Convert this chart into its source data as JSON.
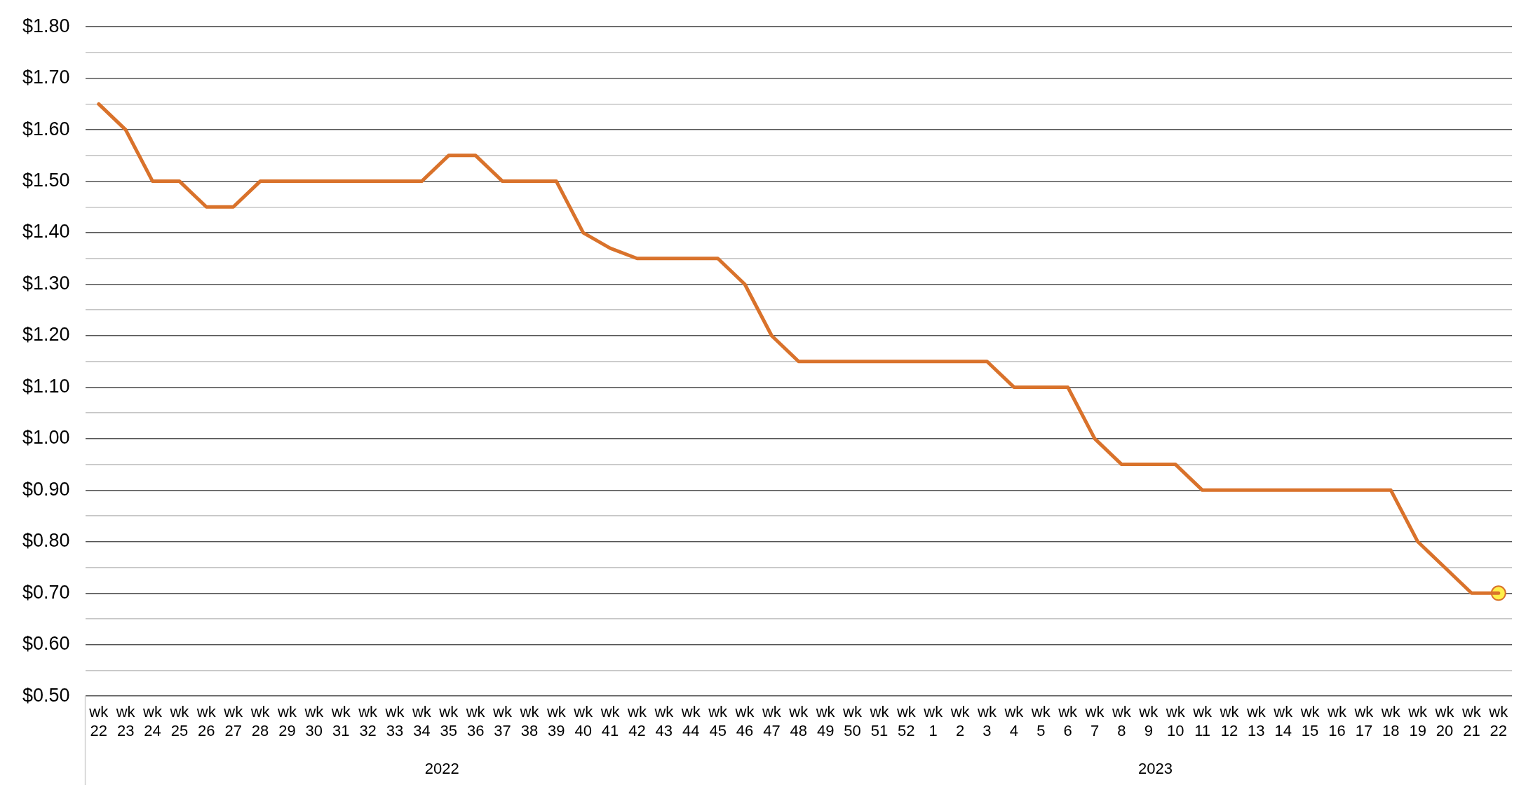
{
  "chart_data": {
    "type": "line",
    "categories": [
      "wk 22",
      "wk 23",
      "wk 24",
      "wk 25",
      "wk 26",
      "wk 27",
      "wk 28",
      "wk 29",
      "wk 30",
      "wk 31",
      "wk 32",
      "wk 33",
      "wk 34",
      "wk 35",
      "wk 36",
      "wk 37",
      "wk 38",
      "wk 39",
      "wk 40",
      "wk 41",
      "wk 42",
      "wk 43",
      "wk 44",
      "wk 45",
      "wk 46",
      "wk 47",
      "wk 48",
      "wk 49",
      "wk 50",
      "wk 51",
      "wk 52",
      "wk 1",
      "wk 2",
      "wk 3",
      "wk 4",
      "wk 5",
      "wk 6",
      "wk 7",
      "wk 8",
      "wk 9",
      "wk 10",
      "wk 11",
      "wk 12",
      "wk 13",
      "wk 14",
      "wk 15",
      "wk 16",
      "wk 17",
      "wk 18",
      "wk 19",
      "wk 20",
      "wk 21",
      "wk 22"
    ],
    "series": [
      {
        "color": "#d9722b",
        "values": [
          1.65,
          1.6,
          1.5,
          1.5,
          1.45,
          1.45,
          1.5,
          1.5,
          1.5,
          1.5,
          1.5,
          1.5,
          1.5,
          1.55,
          1.55,
          1.5,
          1.5,
          1.5,
          1.4,
          1.37,
          1.35,
          1.35,
          1.35,
          1.35,
          1.3,
          1.2,
          1.15,
          1.15,
          1.15,
          1.15,
          1.15,
          1.15,
          1.15,
          1.15,
          1.1,
          1.1,
          1.1,
          1.0,
          0.95,
          0.95,
          0.95,
          0.9,
          0.9,
          0.9,
          0.9,
          0.9,
          0.9,
          0.9,
          0.9,
          0.8,
          0.75,
          0.7,
          0.7
        ]
      },
      {
        "type": "scatter",
        "color": "#fff04a",
        "values": [
          null,
          null,
          null,
          null,
          null,
          null,
          null,
          null,
          null,
          null,
          null,
          null,
          null,
          null,
          null,
          null,
          null,
          null,
          null,
          null,
          null,
          null,
          null,
          null,
          null,
          null,
          null,
          null,
          null,
          null,
          null,
          null,
          null,
          null,
          null,
          null,
          null,
          null,
          null,
          null,
          null,
          null,
          null,
          null,
          null,
          null,
          null,
          null,
          null,
          null,
          null,
          null,
          0.7
        ]
      }
    ],
    "ylim": [
      0.5,
      1.8
    ],
    "yticks": [
      {
        "value": 0.5,
        "label": "$0.50"
      },
      {
        "value": 0.55,
        "label": null
      },
      {
        "value": 0.6,
        "label": "$0.60"
      },
      {
        "value": 0.65,
        "label": null
      },
      {
        "value": 0.7,
        "label": "$0.70"
      },
      {
        "value": 0.75,
        "label": null
      },
      {
        "value": 0.8,
        "label": "$0.80"
      },
      {
        "value": 0.85,
        "label": null
      },
      {
        "value": 0.9,
        "label": "$0.90"
      },
      {
        "value": 0.95,
        "label": null
      },
      {
        "value": 1.0,
        "label": "$1.00"
      },
      {
        "value": 1.05,
        "label": null
      },
      {
        "value": 1.1,
        "label": "$1.10"
      },
      {
        "value": 1.15,
        "label": null
      },
      {
        "value": 1.2,
        "label": "$1.20"
      },
      {
        "value": 1.25,
        "label": null
      },
      {
        "value": 1.3,
        "label": "$1.30"
      },
      {
        "value": 1.35,
        "label": null
      },
      {
        "value": 1.4,
        "label": "$1.40"
      },
      {
        "value": 1.45,
        "label": null
      },
      {
        "value": 1.5,
        "label": "$1.50"
      },
      {
        "value": 1.55,
        "label": null
      },
      {
        "value": 1.6,
        "label": "$1.60"
      },
      {
        "value": 1.65,
        "label": null
      },
      {
        "value": 1.7,
        "label": "$1.70"
      },
      {
        "value": 1.75,
        "label": null
      },
      {
        "value": 1.8,
        "label": "$1.80"
      }
    ],
    "grid": "y",
    "legend": false,
    "annotations": [
      "2022",
      "2023"
    ]
  }
}
